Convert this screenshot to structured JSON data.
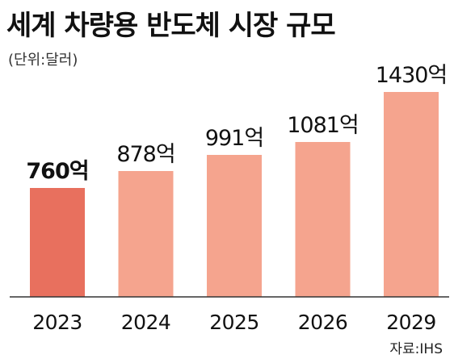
{
  "title": "세계 차량용 반도체 시장 규모",
  "unit_note": "(단위:달러)",
  "source": "자료:IHS",
  "colors": {
    "highlight_bar": "#E8705E",
    "bar": "#F5A48E",
    "baseline": "#333333",
    "text": "#111111"
  },
  "chart_data": {
    "type": "bar",
    "title": "세계 차량용 반도체 시장 규모",
    "xlabel": "",
    "ylabel": "",
    "unit": "(단위:달러)",
    "categories": [
      "2023",
      "2024",
      "2025",
      "2026",
      "2029"
    ],
    "values": [
      760,
      878,
      991,
      1081,
      1430
    ],
    "value_labels": [
      "760억",
      "878억",
      "991억",
      "1081억",
      "1430억"
    ],
    "highlight_index": 0,
    "ylim": [
      0,
      1430
    ],
    "grid": false,
    "legend": "none"
  }
}
